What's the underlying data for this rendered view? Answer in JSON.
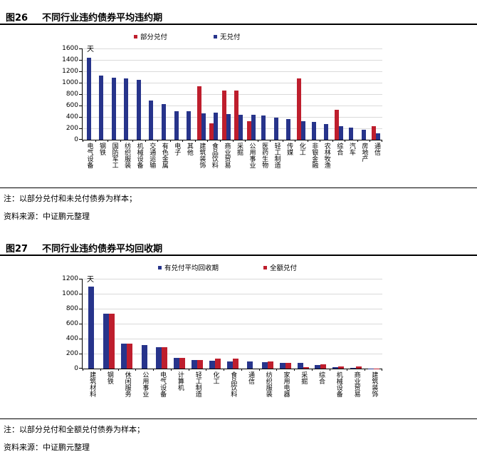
{
  "colors": {
    "bar_blue": "#27348B",
    "bar_red": "#BE1E2D",
    "gridline": "#DADADA",
    "rule": "#000000"
  },
  "figures": [
    {
      "label": "图26",
      "title": "不同行业违约债券平均违约期",
      "note": "注：以部分兑付和未兑付债券为样本；",
      "source": "资料来源：中证鹏元整理"
    },
    {
      "label": "图27",
      "title": "不同行业违约债券平均回收期",
      "note": "注：以部分兑付和全额兑付债券为样本；",
      "source": "资料来源：中证鹏元整理"
    }
  ],
  "chart_data": [
    {
      "type": "bar",
      "title": "不同行业违约债券平均违约期",
      "unit_label": "天",
      "ylim": [
        0,
        1600
      ],
      "ytick_step": 200,
      "grid": true,
      "legend_position": "top",
      "categories": [
        "电气设备",
        "钢铁",
        "国防军工",
        "纺织服装",
        "机械设备",
        "交通运输",
        "有色金属",
        "电子",
        "其他",
        "建筑装饰",
        "食品饮料",
        "商业贸易",
        "采掘",
        "公用事业",
        "医药生物",
        "轻工制造",
        "传媒",
        "化工",
        "非银金融",
        "农林牧渔",
        "综合",
        "汽车",
        "房地产",
        "通信"
      ],
      "series": [
        {
          "name": "部分兑付",
          "color": "#BE1E2D",
          "values": [
            null,
            null,
            null,
            null,
            null,
            null,
            null,
            null,
            null,
            940,
            290,
            860,
            865,
            330,
            null,
            null,
            null,
            1070,
            null,
            null,
            530,
            null,
            null,
            240
          ]
        },
        {
          "name": "无兑付",
          "color": "#27348B",
          "values": [
            1440,
            1130,
            1085,
            1075,
            1050,
            690,
            630,
            505,
            495,
            465,
            475,
            450,
            435,
            440,
            420,
            390,
            365,
            330,
            310,
            270,
            240,
            210,
            180,
            110
          ]
        }
      ]
    },
    {
      "type": "bar",
      "title": "不同行业违约债券平均回收期",
      "unit_label": "天",
      "ylim": [
        0,
        1200
      ],
      "ytick_step": 200,
      "grid": true,
      "legend_position": "top",
      "categories": [
        "建筑材料",
        "钢铁",
        "休闲服务",
        "公用事业",
        "电气设备",
        "计算机",
        "轻工制造",
        "化工",
        "食品饮料",
        "通信",
        "纺织服装",
        "家用电器",
        "采掘",
        "综合",
        "机械设备",
        "商业贸易",
        "建筑装饰"
      ],
      "series": [
        {
          "name": "有兑付平均回收期",
          "color": "#27348B",
          "values": [
            1095,
            735,
            335,
            310,
            290,
            140,
            115,
            105,
            100,
            95,
            85,
            75,
            80,
            45,
            20,
            10,
            3
          ]
        },
        {
          "name": "全额兑付",
          "color": "#BE1E2D",
          "values": [
            null,
            735,
            335,
            null,
            290,
            140,
            115,
            135,
            130,
            null,
            95,
            80,
            15,
            55,
            25,
            25,
            3
          ]
        }
      ]
    }
  ]
}
